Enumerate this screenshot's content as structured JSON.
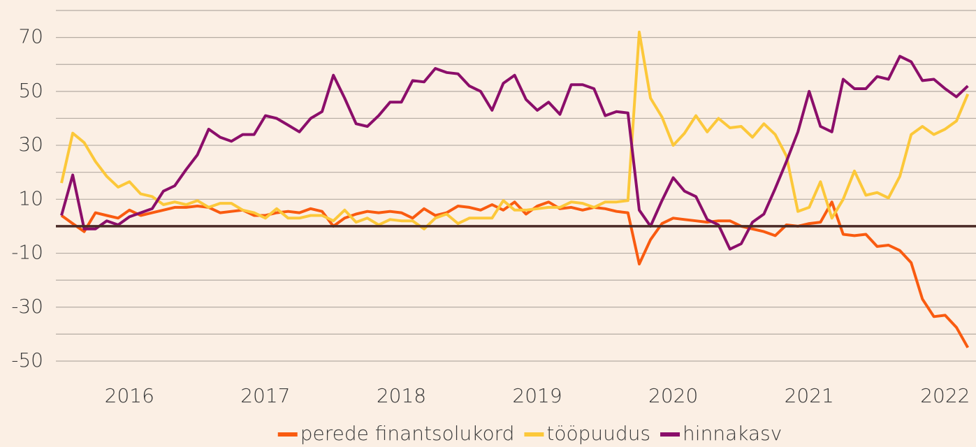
{
  "chart_data": {
    "type": "line",
    "x": [
      2016,
      2016.083,
      2016.167,
      2016.25,
      2016.333,
      2016.417,
      2016.5,
      2016.583,
      2016.667,
      2016.75,
      2016.833,
      2016.917,
      2017,
      2017.083,
      2017.167,
      2017.25,
      2017.333,
      2017.417,
      2017.5,
      2017.583,
      2017.667,
      2017.75,
      2017.833,
      2017.917,
      2018,
      2018.083,
      2018.167,
      2018.25,
      2018.333,
      2018.417,
      2018.5,
      2018.583,
      2018.667,
      2018.75,
      2018.833,
      2018.917,
      2019,
      2019.083,
      2019.167,
      2019.25,
      2019.333,
      2019.417,
      2019.5,
      2019.583,
      2019.667,
      2019.75,
      2019.833,
      2019.917,
      2020,
      2020.083,
      2020.167,
      2020.25,
      2020.333,
      2020.417,
      2020.5,
      2020.583,
      2020.667,
      2020.75,
      2020.833,
      2020.917,
      2021,
      2021.083,
      2021.167,
      2021.25,
      2021.333,
      2021.417,
      2021.5,
      2021.583,
      2021.667,
      2021.75,
      2021.833,
      2021.917,
      2022,
      2022.083,
      2022.167,
      2022.25,
      2022.333,
      2022.417,
      2022.5,
      2022.583,
      2022.667
    ],
    "series": [
      {
        "name": "perede finantsolukord",
        "color": "#f95b10",
        "values": [
          4,
          1,
          -2,
          5,
          4,
          3,
          6,
          4,
          5,
          6,
          7,
          7,
          7.5,
          7,
          5,
          5.5,
          6,
          4,
          4,
          5,
          5.5,
          5,
          6.5,
          5.5,
          0,
          3,
          4.5,
          5.5,
          5,
          5.5,
          5,
          3,
          6.5,
          4,
          5,
          7.5,
          7,
          6,
          8,
          6,
          9,
          4.5,
          7.5,
          9,
          6.5,
          7,
          6,
          7,
          6.5,
          5.5,
          5,
          -14,
          -5,
          1,
          3,
          2.5,
          2,
          1.5,
          2,
          2,
          0,
          -1,
          -2,
          -3.5,
          0.5,
          0,
          1,
          1.5,
          9,
          -3,
          -3.5,
          -3,
          -7.5,
          -7,
          -9,
          -13.5,
          -27,
          -33.5,
          -33,
          -37.5,
          -45
        ]
      },
      {
        "name": "tööpuudus",
        "color": "#fcc83a",
        "values": [
          16,
          34.5,
          31,
          24,
          18.5,
          14.5,
          16.5,
          12,
          11,
          8,
          9,
          8,
          9.5,
          7,
          8.5,
          8.5,
          6,
          5,
          3,
          6.5,
          3,
          3,
          4,
          4,
          2,
          6,
          1.5,
          3,
          0.5,
          2.5,
          2,
          2,
          -1,
          3,
          4.5,
          1,
          3,
          3,
          3,
          9.5,
          6,
          6,
          6.5,
          7,
          7,
          9,
          8.5,
          7,
          9,
          9,
          9.5,
          72,
          47.5,
          40.5,
          30,
          34.5,
          41,
          35,
          40,
          36.5,
          37,
          33,
          38,
          34,
          26,
          5.5,
          7,
          16.5,
          3,
          10,
          20.5,
          11.5,
          12.5,
          10.5,
          18.5,
          34,
          37,
          34,
          36,
          39,
          49
        ]
      },
      {
        "name": "hinnakasv",
        "color": "#8b0e6a",
        "values": [
          4,
          19,
          -1,
          -1,
          2,
          0.5,
          3.5,
          5,
          6.5,
          13,
          15,
          21,
          26.5,
          36,
          33,
          31.5,
          34,
          34,
          41,
          40,
          37.5,
          35,
          40,
          42.5,
          56,
          47.5,
          38,
          37,
          41,
          46,
          46,
          54,
          53.5,
          58.5,
          57,
          56.5,
          52,
          50,
          43,
          53,
          56,
          47,
          43,
          46,
          41.5,
          52.5,
          52.5,
          51,
          41,
          42.5,
          42,
          6,
          0,
          9.5,
          18,
          13,
          11,
          2.5,
          0.5,
          -8.5,
          -6.5,
          1.5,
          4.5,
          14,
          24,
          35,
          50,
          37,
          35,
          54.5,
          51,
          51,
          55.5,
          54.5,
          63,
          61,
          54,
          54.5,
          51,
          48,
          52
        ]
      }
    ],
    "xlim": [
      2015.959,
      2022.727
    ],
    "xticks": [
      {
        "value": 2016.5,
        "label": "2016"
      },
      {
        "value": 2017.5,
        "label": "2017"
      },
      {
        "value": 2018.5,
        "label": "2018"
      },
      {
        "value": 2019.5,
        "label": "2019"
      },
      {
        "value": 2020.5,
        "label": "2020"
      },
      {
        "value": 2021.5,
        "label": "2021"
      },
      {
        "value": 2022.5,
        "label": "2022"
      }
    ],
    "ylim": [
      -50,
      80
    ],
    "yticks": [
      70,
      50,
      30,
      10,
      -10,
      -30,
      -50
    ],
    "ygrid": [
      80,
      60,
      40,
      20,
      0,
      -20,
      -40
    ],
    "grid": true,
    "zero_line": true,
    "legend": "bottom"
  }
}
